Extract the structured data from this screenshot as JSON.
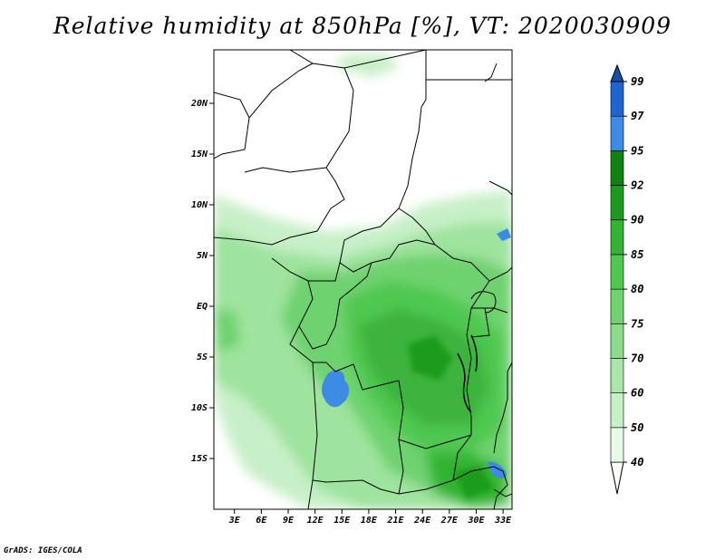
{
  "title": "Relative humidity at 850hPa [%], VT: 2020030909",
  "credit": "GrADS: IGES/COLA",
  "lat_labels": [
    "20N",
    "15N",
    "10N",
    "5N",
    "EQ",
    "5S",
    "10S",
    "15S"
  ],
  "lat_values": [
    20,
    15,
    10,
    5,
    0,
    -5,
    -10,
    -15
  ],
  "lon_labels": [
    "3E",
    "6E",
    "9E",
    "12E",
    "15E",
    "18E",
    "21E",
    "24E",
    "27E",
    "30E",
    "33E"
  ],
  "lon_values": [
    3,
    6,
    9,
    12,
    15,
    18,
    21,
    24,
    27,
    30,
    33
  ],
  "colorbar": {
    "levels": [
      "40",
      "50",
      "60",
      "70",
      "75",
      "80",
      "85",
      "90",
      "92",
      "95",
      "97",
      "99"
    ],
    "colors": [
      "#fafffa",
      "#e6fae6",
      "#c8f0c8",
      "#aae6aa",
      "#8cdc8c",
      "#6ed26e",
      "#50c850",
      "#32b432",
      "#1e9b1e",
      "#0f820f",
      "#3c8ce6",
      "#1e64d2",
      "#1450aa"
    ]
  }
}
